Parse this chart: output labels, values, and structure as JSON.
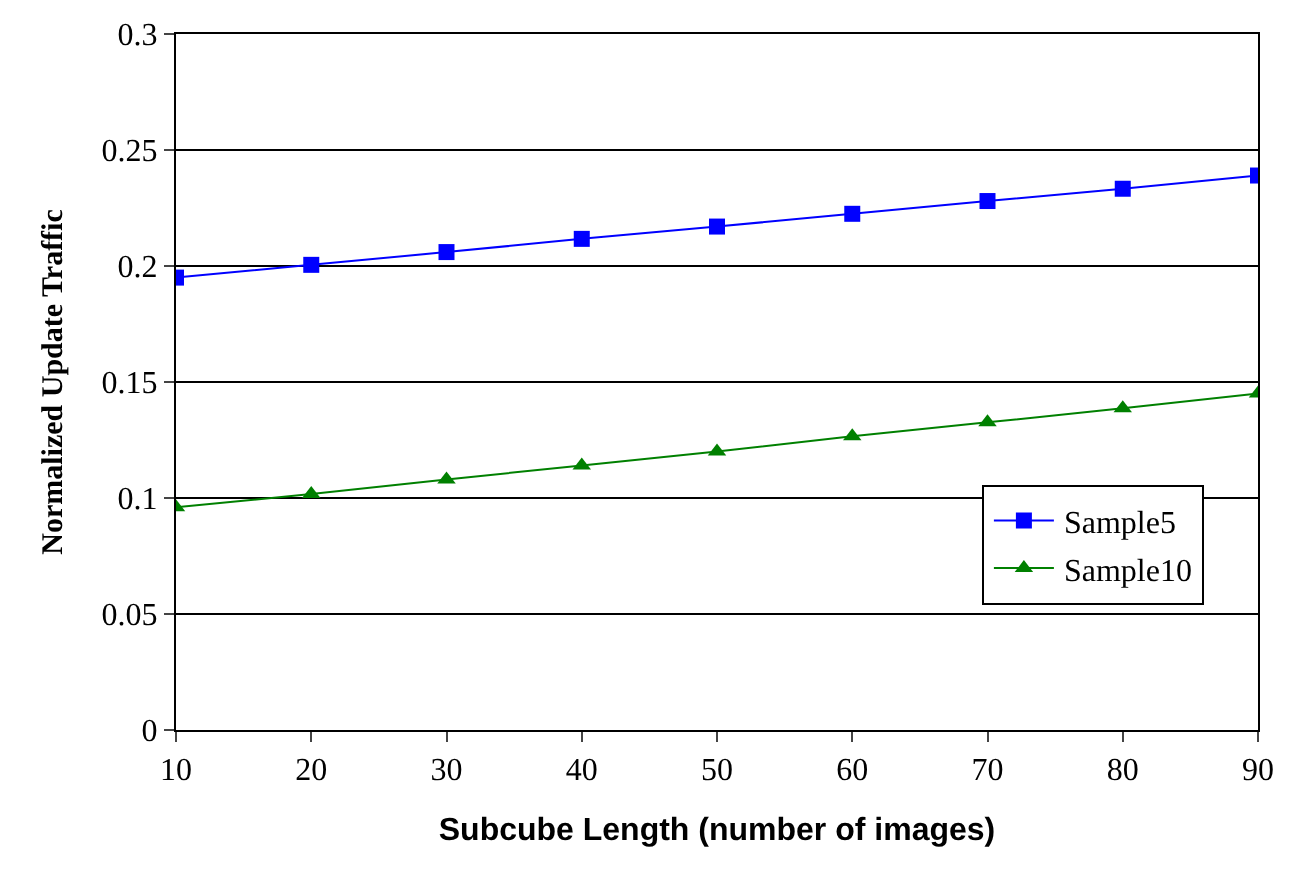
{
  "chart_data": {
    "type": "line",
    "xlabel": "Subcube Length (number of images)",
    "ylabel": "Normalized Update Traffic",
    "x": [
      10,
      20,
      30,
      40,
      50,
      60,
      70,
      80,
      90
    ],
    "series": [
      {
        "name": "Sample5",
        "color": "#0000ff",
        "marker": "square",
        "values": [
          0.195,
          0.2005,
          0.206,
          0.2117,
          0.217,
          0.2225,
          0.228,
          0.2333,
          0.239
        ]
      },
      {
        "name": "Sample10",
        "color": "#008000",
        "marker": "triangle",
        "values": [
          0.096,
          0.1017,
          0.108,
          0.114,
          0.12,
          0.1266,
          0.1326,
          0.1387,
          0.145
        ]
      }
    ],
    "xlim": [
      10,
      90
    ],
    "xticks": [
      10,
      20,
      30,
      40,
      50,
      60,
      70,
      80,
      90
    ],
    "ylim": [
      0,
      0.3
    ],
    "yticks": [
      0,
      0.05,
      0.1,
      0.15,
      0.2,
      0.25,
      0.3
    ],
    "grid": "y",
    "legend": "bottom right",
    "line_style": "solid"
  }
}
